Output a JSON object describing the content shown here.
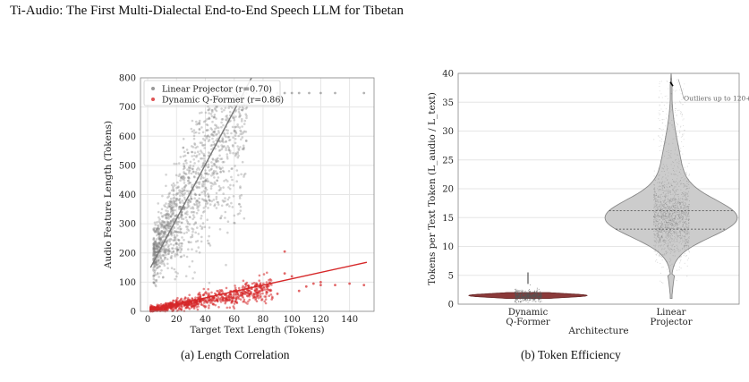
{
  "header": {
    "text": "Ti-Audio: The First Multi-Dialectal End-to-End Speech LLM for Tibetan"
  },
  "captions": {
    "a": "(a) Length Correlation",
    "b": "(b) Token Efficiency"
  },
  "colors": {
    "linear": "#808080",
    "dynamic": "#d62728",
    "violin_linear": "#cccccc",
    "violin_dynamic": "#8b3a3a",
    "grid": "#e6e6e6"
  },
  "chart_data": [
    {
      "type": "scatter",
      "xlabel": "Target Text Length (Tokens)",
      "ylabel": "Audio Feature Length (Tokens)",
      "xlim": [
        -5,
        157
      ],
      "ylim": [
        0,
        800
      ],
      "xticks": [
        "0",
        "20",
        "40",
        "60",
        "80",
        "100",
        "120",
        "140"
      ],
      "yticks": [
        "0",
        "100",
        "200",
        "300",
        "400",
        "500",
        "600",
        "700",
        "800"
      ],
      "grid": true,
      "legend_position": "top-left",
      "series": [
        {
          "name": "Linear Projector (r=0.70)",
          "color": "#808080",
          "fit_line": {
            "x": [
              2,
              72
            ],
            "y": [
              150,
              800
            ]
          },
          "outliers": [
            [
              80,
              748
            ],
            [
              85,
              748
            ],
            [
              90,
              748
            ],
            [
              95,
              748
            ],
            [
              100,
              748
            ],
            [
              105,
              748
            ],
            [
              112,
              748
            ],
            [
              120,
              748
            ],
            [
              130,
              748
            ],
            [
              150,
              748
            ],
            [
              74,
              748
            ],
            [
              78,
              745
            ]
          ]
        },
        {
          "name": "Dynamic Q-Former (r=0.86)",
          "color": "#d62728",
          "fit_line": {
            "x": [
              2,
              152
            ],
            "y": [
              5,
              168
            ]
          },
          "outliers": [
            [
              95,
              130
            ],
            [
              110,
              85
            ],
            [
              120,
              100
            ],
            [
              120,
              90
            ],
            [
              130,
              90
            ],
            [
              150,
              90
            ],
            [
              90,
              60
            ],
            [
              105,
              70
            ],
            [
              115,
              95
            ],
            [
              100,
              120
            ],
            [
              95,
              205
            ],
            [
              140,
              95
            ]
          ]
        }
      ]
    },
    {
      "type": "violin",
      "xlabel": "Architecture",
      "ylabel": "Tokens per Text Token (L_audio / L_text)",
      "ylim": [
        0,
        40
      ],
      "yticks": [
        "0",
        "5",
        "10",
        "15",
        "20",
        "25",
        "30",
        "35",
        "40"
      ],
      "categories": [
        "Dynamic\nQ-Former",
        "Linear\nProjector"
      ],
      "grid": true,
      "annotation": "Outliers up to 120+",
      "series": [
        {
          "name": "Dynamic Q-Former",
          "median": 1.5,
          "q1": 1.2,
          "q3": 1.8,
          "min": 0.3,
          "max": 5.5,
          "color": "#8b3a3a"
        },
        {
          "name": "Linear Projector",
          "median": 15.0,
          "q1": 13.0,
          "q3": 16.2,
          "min": 1.0,
          "max": 40.0,
          "color": "#cccccc"
        }
      ]
    }
  ]
}
